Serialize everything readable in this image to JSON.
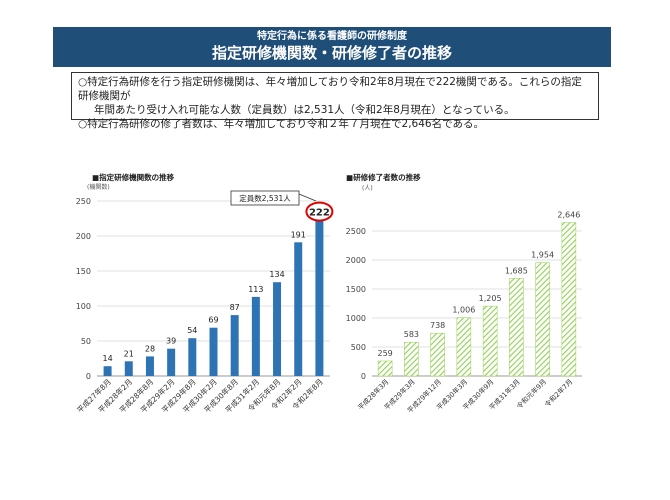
{
  "header": {
    "subtitle": "特定行為に係る看護師の研修制度",
    "title": "指定研修機関数・研修修了者の推移"
  },
  "summary": {
    "line1": "○特定行為研修を行う指定研修機関は、年々増加しており令和2年8月現在で222機関である。これらの指定研修機関が",
    "line2": "年間あたり受け入れ可能な人数（定員数）は2,531人（令和2年8月現在）となっている。",
    "line3": "○特定行為研修の修了者数は、年々増加しており令和２年７月現在で2,646名である。"
  },
  "chart_data": [
    {
      "type": "bar",
      "title": "■指定研修機関数の推移",
      "ylabel": "(機関数)",
      "ylim": [
        0,
        250
      ],
      "yticks": [
        0,
        50,
        100,
        150,
        200,
        250
      ],
      "categories": [
        "平成27年8月",
        "平成28年2月",
        "平成28年8月",
        "平成29年2月",
        "平成29年8月",
        "平成30年2月",
        "平成30年8月",
        "平成31年2月",
        "令和元年8月",
        "令和2年2月",
        "令和2年8月"
      ],
      "values": [
        14,
        21,
        28,
        39,
        54,
        69,
        87,
        113,
        134,
        191,
        222
      ],
      "bar_color": "#2e74b5",
      "highlight_label": "222",
      "callout": "定員数2,531人"
    },
    {
      "type": "bar",
      "title": "■研修修了者数の推移",
      "ylabel": "(人)",
      "ylim": [
        0,
        3000
      ],
      "yticks": [
        0,
        500,
        1000,
        1500,
        2000,
        2500
      ],
      "categories": [
        "平成28年3月",
        "平成29年3月",
        "平成29年12月",
        "平成30年3月",
        "平成30年9月",
        "平成31年3月",
        "令和元年9月",
        "令和2年7月"
      ],
      "values": [
        259,
        583,
        738,
        1006,
        1205,
        1685,
        1954,
        2646
      ],
      "value_labels": [
        "259",
        "583",
        "738",
        "1,006",
        "1,205",
        "1,685",
        "1,954",
        "2,646"
      ],
      "bar_color": "#92d050"
    }
  ]
}
